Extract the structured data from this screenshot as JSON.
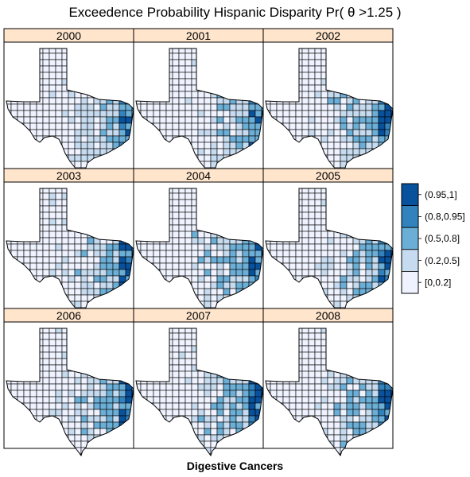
{
  "title": "Exceedence Probability Hispanic Disparity Pr( θ >1.25 )",
  "caption": "Digestive Cancers",
  "panels": [
    {
      "year": "2000",
      "intensity": 0.55
    },
    {
      "year": "2001",
      "intensity": 0.55
    },
    {
      "year": "2002",
      "intensity": 0.6
    },
    {
      "year": "2003",
      "intensity": 0.75
    },
    {
      "year": "2004",
      "intensity": 0.8
    },
    {
      "year": "2005",
      "intensity": 0.75
    },
    {
      "year": "2006",
      "intensity": 0.95
    },
    {
      "year": "2007",
      "intensity": 0.95
    },
    {
      "year": "2008",
      "intensity": 0.9
    }
  ],
  "legend": {
    "classes": [
      {
        "label": "(0.95,1]",
        "color": "#08519c"
      },
      {
        "label": "(0.8,0.95]",
        "color": "#3182bd"
      },
      {
        "label": "(0.5,0.8]",
        "color": "#6baed6"
      },
      {
        "label": "(0.2,0.5]",
        "color": "#c6dbef"
      },
      {
        "label": "[0,0.2]",
        "color": "#eff3ff"
      }
    ]
  },
  "colors": {
    "strip_background": "#ffe5cc",
    "border": "#000000"
  }
}
